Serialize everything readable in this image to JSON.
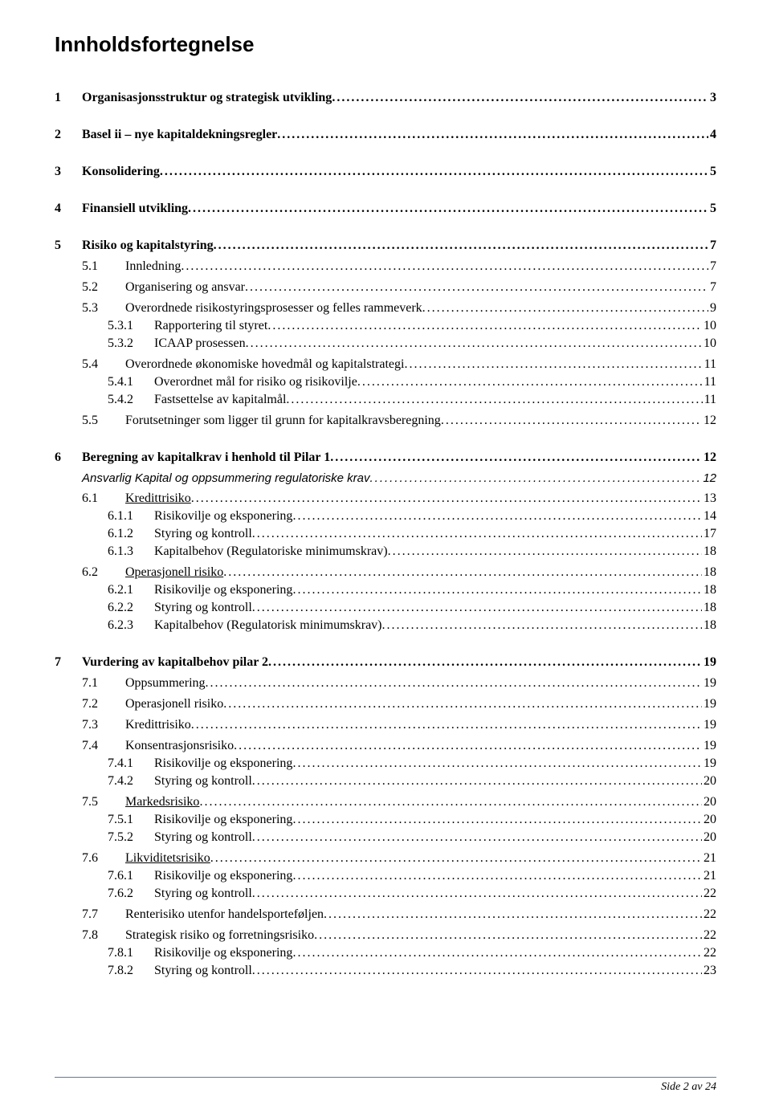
{
  "title": "Innholdsfortegnelse",
  "footer": "Side 2 av 24",
  "colors": {
    "text": "#000000",
    "background": "#ffffff",
    "footer_rule": "#5b7ca3"
  },
  "fonts": {
    "body": "Times New Roman",
    "heading": "Trebuchet MS",
    "title_size_pt": 20,
    "body_size_pt": 12
  },
  "toc": [
    {
      "level": 1,
      "num": "1",
      "text": "Organisasjonsstruktur og strategisk utvikling",
      "page": "3",
      "gap_before": "",
      "gap_after": "big"
    },
    {
      "level": 1,
      "num": "2",
      "text": "Basel ii – nye kapitaldekningsregler",
      "page": "4",
      "gap_after": "big"
    },
    {
      "level": 1,
      "num": "3",
      "text": "Konsolidering",
      "page": "5",
      "gap_after": "big"
    },
    {
      "level": 1,
      "num": "4",
      "text": "Finansiell utvikling",
      "page": "5",
      "gap_after": "big"
    },
    {
      "level": 1,
      "num": "5",
      "text": "Risiko og kapitalstyring",
      "page": "7",
      "gap_after": "med"
    },
    {
      "level": 2,
      "num": "5.1",
      "text": "Innledning",
      "page": "7",
      "gap_after": "med"
    },
    {
      "level": 2,
      "num": "5.2",
      "text": "Organisering og ansvar",
      "page": "7",
      "gap_after": "med"
    },
    {
      "level": 2,
      "num": "5.3",
      "text": "Overordnede risikostyringsprosesser og felles rammeverk",
      "page": "9",
      "gap_after": "sm"
    },
    {
      "level": 3,
      "num": "5.3.1",
      "text": "Rapportering til styret",
      "page": "10",
      "gap_after": "sm"
    },
    {
      "level": 3,
      "num": "5.3.2",
      "text": "ICAAP prosessen",
      "page": "10",
      "gap_after": "med"
    },
    {
      "level": 2,
      "num": "5.4",
      "text": "Overordnede økonomiske hovedmål og kapitalstrategi",
      "page": "11",
      "gap_after": "sm"
    },
    {
      "level": 3,
      "num": "5.4.1",
      "text": "Overordnet mål for risiko og risikovilje",
      "page": "11",
      "gap_after": "sm"
    },
    {
      "level": 3,
      "num": "5.4.2",
      "text": "Fastsettelse av kapitalmål",
      "page": "11",
      "gap_after": "med"
    },
    {
      "level": 2,
      "num": "5.5",
      "text": "Forutsetninger som ligger til grunn for kapitalkravsberegning",
      "page": "12",
      "gap_after": "big"
    },
    {
      "level": 1,
      "num": "6",
      "text": "Beregning av kapitalkrav i henhold til Pilar 1",
      "page": "12",
      "gap_after": "med"
    },
    {
      "level": "2i",
      "num": "",
      "text": "Ansvarlig Kapital og oppsummering regulatoriske krav",
      "page": "12",
      "gap_after": "med"
    },
    {
      "level": 2,
      "num": "6.1",
      "text": "Kredittrisiko",
      "page": "13",
      "underline": true,
      "gap_after": "sm"
    },
    {
      "level": 3,
      "num": "6.1.1",
      "text": "Risikovilje og eksponering",
      "page": "14",
      "gap_after": "sm"
    },
    {
      "level": 3,
      "num": "6.1.2",
      "text": "Styring og kontroll",
      "page": "17",
      "gap_after": "sm"
    },
    {
      "level": 3,
      "num": "6.1.3",
      "text": "Kapitalbehov (Regulatoriske minimumskrav)",
      "page": "18",
      "gap_after": "med"
    },
    {
      "level": 2,
      "num": "6.2",
      "text": "Operasjonell risiko",
      "page": "18",
      "underline": true,
      "gap_after": "sm"
    },
    {
      "level": 3,
      "num": "6.2.1",
      "text": "Risikovilje og eksponering",
      "page": "18",
      "gap_after": "sm"
    },
    {
      "level": 3,
      "num": "6.2.2",
      "text": "Styring og kontroll",
      "page": "18",
      "gap_after": "sm"
    },
    {
      "level": 3,
      "num": "6.2.3",
      "text": "Kapitalbehov (Regulatorisk minimumskrav)",
      "page": "18",
      "gap_after": "big"
    },
    {
      "level": 1,
      "num": "7",
      "text": "Vurdering av kapitalbehov pilar 2",
      "page": "19",
      "gap_after": "med"
    },
    {
      "level": 2,
      "num": "7.1",
      "text": "Oppsummering",
      "page": "19",
      "gap_after": "med"
    },
    {
      "level": 2,
      "num": "7.2",
      "text": "Operasjonell risiko",
      "page": "19",
      "gap_after": "med"
    },
    {
      "level": 2,
      "num": "7.3",
      "text": "Kredittrisiko",
      "page": "19",
      "gap_after": "med"
    },
    {
      "level": 2,
      "num": "7.4",
      "text": "Konsentrasjonsrisiko",
      "page": "19",
      "gap_after": "sm"
    },
    {
      "level": 3,
      "num": "7.4.1",
      "text": "Risikovilje og eksponering",
      "page": "19",
      "gap_after": "sm"
    },
    {
      "level": 3,
      "num": "7.4.2",
      "text": "Styring og kontroll",
      "page": "20",
      "gap_after": "med"
    },
    {
      "level": 2,
      "num": "7.5",
      "text": "Markedsrisiko",
      "page": "20",
      "underline": true,
      "gap_after": "sm"
    },
    {
      "level": 3,
      "num": "7.5.1",
      "text": "Risikovilje og eksponering",
      "page": "20",
      "gap_after": "sm"
    },
    {
      "level": 3,
      "num": "7.5.2",
      "text": "Styring og kontroll",
      "page": "20",
      "gap_after": "med"
    },
    {
      "level": 2,
      "num": "7.6",
      "text": "Likviditetsrisiko",
      "page": "21",
      "underline": true,
      "gap_after": "sm"
    },
    {
      "level": 3,
      "num": "7.6.1",
      "text": "Risikovilje og eksponering",
      "page": "21",
      "gap_after": "sm"
    },
    {
      "level": 3,
      "num": "7.6.2",
      "text": "Styring og kontroll",
      "page": "22",
      "gap_after": "med"
    },
    {
      "level": 2,
      "num": "7.7",
      "text": "Renterisiko utenfor handelsporteføljen",
      "page": "22",
      "gap_after": "med"
    },
    {
      "level": 2,
      "num": "7.8",
      "text": "Strategisk risiko og forretningsrisiko",
      "page": "22",
      "gap_after": "sm"
    },
    {
      "level": 3,
      "num": "7.8.1",
      "text": "Risikovilje og eksponering",
      "page": "22",
      "gap_after": "sm"
    },
    {
      "level": 3,
      "num": "7.8.2",
      "text": "Styring og kontroll",
      "page": "23",
      "gap_after": ""
    }
  ]
}
